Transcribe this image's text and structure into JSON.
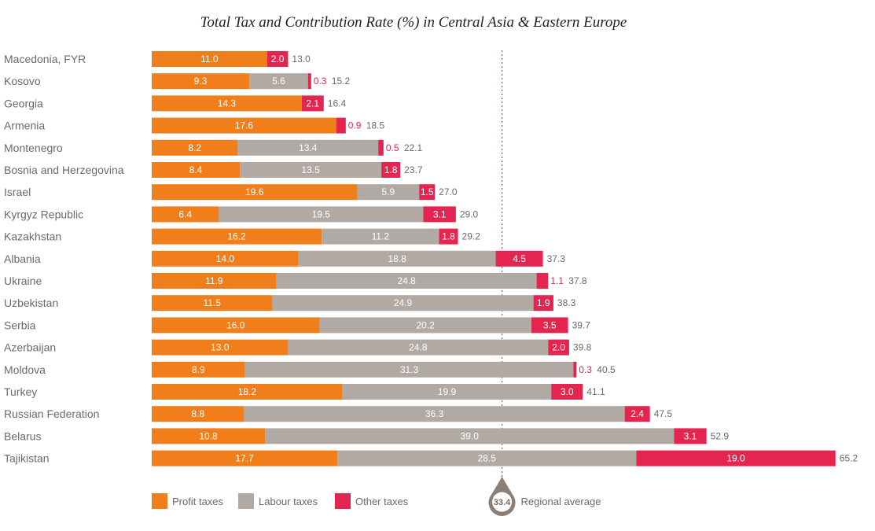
{
  "chart_data": {
    "type": "bar",
    "orientation": "horizontal",
    "stacked": true,
    "title": "Total Tax and Contribution Rate (%) in Central Asia & Eastern Europe",
    "categories": [
      "Macedonia, FYR",
      "Kosovo",
      "Georgia",
      "Armenia",
      "Montenegro",
      "Bosnia and Herzegovina",
      "Israel",
      "Kyrgyz Republic",
      "Kazakhstan",
      "Albania",
      "Ukraine",
      "Uzbekistan",
      "Serbia",
      "Azerbaijan",
      "Moldova",
      "Turkey",
      "Russian Federation",
      "Belarus",
      "Tajikistan"
    ],
    "series": [
      {
        "name": "Profit taxes",
        "color": "#f07e1b",
        "values": [
          11.0,
          9.3,
          14.3,
          17.6,
          8.2,
          8.4,
          19.6,
          6.4,
          16.2,
          14.0,
          11.9,
          11.5,
          16.0,
          13.0,
          8.9,
          18.2,
          8.8,
          10.8,
          17.7
        ]
      },
      {
        "name": "Labour taxes",
        "color": "#b1a9a4",
        "values": [
          0,
          5.6,
          0,
          0,
          13.4,
          13.5,
          5.9,
          19.5,
          11.2,
          18.8,
          24.8,
          24.9,
          20.2,
          24.8,
          31.3,
          19.9,
          36.3,
          39.0,
          28.5
        ]
      },
      {
        "name": "Other taxes",
        "color": "#e3254f",
        "values": [
          2.0,
          0.3,
          2.1,
          0.9,
          0.5,
          1.8,
          1.5,
          3.1,
          1.8,
          4.5,
          1.1,
          1.9,
          3.5,
          2.0,
          0.3,
          3.0,
          2.4,
          3.1,
          19.0
        ]
      }
    ],
    "totals": [
      13.0,
      15.2,
      16.4,
      18.5,
      22.1,
      23.7,
      27.0,
      29.0,
      29.2,
      37.3,
      37.8,
      38.3,
      39.7,
      39.8,
      40.5,
      41.1,
      47.5,
      52.9,
      65.2
    ],
    "segment_labels": {
      "Profit taxes": [
        "11.0",
        "9.3",
        "14.3",
        "17.6",
        "8.2",
        "8.4",
        "19.6",
        "6.4",
        "16.2",
        "14.0",
        "11.9",
        "11.5",
        "16.0",
        "13.0",
        "8.9",
        "18.2",
        "8.8",
        "10.8",
        "17.7"
      ],
      "Labour taxes": [
        "",
        "5.6",
        "",
        "",
        "13.4",
        "13.5",
        "5.9",
        "19.5",
        "11.2",
        "18.8",
        "24.8",
        "24.9",
        "20.2",
        "24.8",
        "31.3",
        "19.9",
        "36.3",
        "39.0",
        "28.5"
      ],
      "Other taxes": [
        "2.0",
        "0.3",
        "2.1",
        "0.9",
        "0.5",
        "1.8",
        "1.5",
        "3.1",
        "1.8",
        "4.5",
        "1.1",
        "1.9",
        "3.5",
        "2.0",
        "0.3",
        "3.0",
        "2.4",
        "3.1",
        "19.0"
      ]
    },
    "total_labels": [
      "13.0",
      "15.2",
      "16.4",
      "18.5",
      "22.1",
      "23.7",
      "27.0",
      "29.0",
      "29.2",
      "37.3",
      "37.8",
      "38.3",
      "39.7",
      "39.8",
      "40.5",
      "41.1",
      "47.5",
      "52.9",
      "65.2"
    ],
    "reference_line": {
      "value": 33.4,
      "label": "33.4",
      "text": "Regional average",
      "color": "#8c7f77"
    },
    "legend": {
      "placement": "bottom-left",
      "items": [
        "Profit taxes",
        "Labour taxes",
        "Other taxes"
      ]
    },
    "grid": false
  }
}
